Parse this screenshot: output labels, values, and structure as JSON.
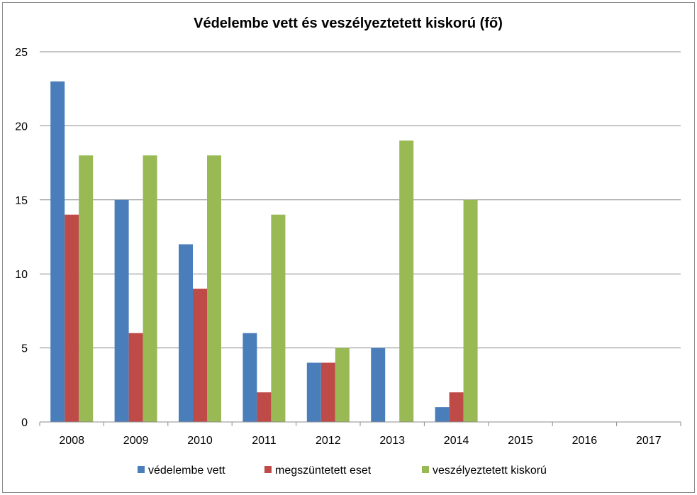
{
  "chart_data": {
    "type": "bar",
    "title": "Védelembe vett és veszélyeztetett kiskorú (fő)",
    "xlabel": "",
    "ylabel": "",
    "categories": [
      "2008",
      "2009",
      "2010",
      "2011",
      "2012",
      "2013",
      "2014",
      "2015",
      "2016",
      "2017"
    ],
    "ylim": [
      0,
      25
    ],
    "yticks": [
      "0",
      "5",
      "10",
      "15",
      "20",
      "25"
    ],
    "grid": true,
    "legend_position": "bottom",
    "series": [
      {
        "name": "védelembe vett",
        "color": "#4a7ebb",
        "values": [
          23,
          15,
          12,
          6,
          4,
          5,
          1,
          null,
          null,
          null
        ]
      },
      {
        "name": "megszüntetett eset",
        "color": "#be4b48",
        "values": [
          14,
          6,
          9,
          2,
          4,
          null,
          2,
          null,
          null,
          null
        ]
      },
      {
        "name": "veszélyeztetett kiskorú",
        "color": "#98b954",
        "values": [
          18,
          18,
          18,
          14,
          5,
          19,
          15,
          null,
          null,
          null
        ]
      }
    ]
  }
}
